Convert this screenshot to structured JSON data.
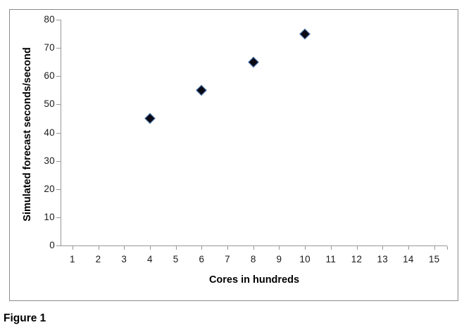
{
  "figure": {
    "caption": "Figure 1"
  },
  "chart_data": {
    "type": "scatter",
    "title": "",
    "xlabel": "Cores in hundreds",
    "ylabel": "Simulated forecast seconds/second",
    "series": [
      {
        "name": "Simulated forecast seconds/second",
        "points": [
          {
            "x": 4,
            "y": 45
          },
          {
            "x": 6,
            "y": 55
          },
          {
            "x": 8,
            "y": 65
          },
          {
            "x": 10,
            "y": 75
          }
        ]
      }
    ],
    "x_ticks": [
      1,
      2,
      3,
      4,
      5,
      6,
      7,
      8,
      9,
      10,
      11,
      12,
      13,
      14,
      15
    ],
    "y_ticks": [
      0,
      10,
      20,
      30,
      40,
      50,
      60,
      70,
      80
    ],
    "xlim": [
      0.5,
      15.5
    ],
    "ylim": [
      0,
      80
    ],
    "grid": false,
    "legend": false,
    "marker": {
      "shape": "diamond",
      "fill_color": "#0a0a16",
      "border_color": "#4f81bd"
    },
    "axis_color": "#969696",
    "frame_border_color": "#8a8a8a",
    "tick_label_color": "#1a1a1a"
  }
}
